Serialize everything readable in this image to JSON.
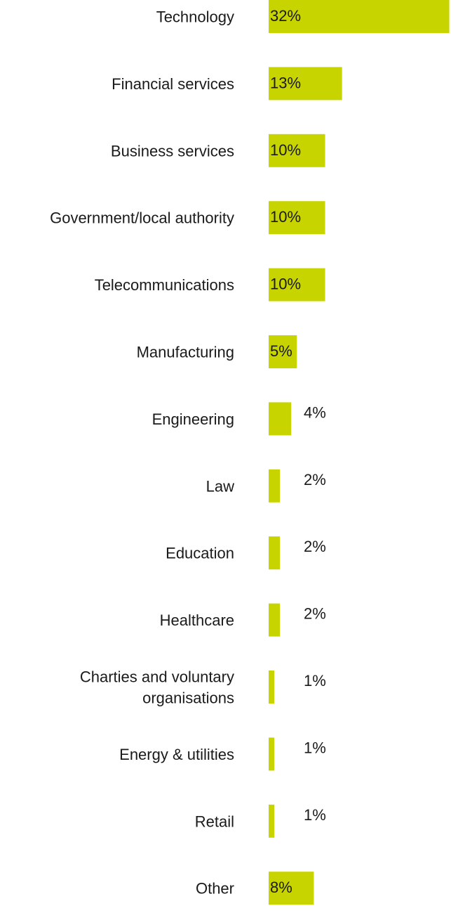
{
  "chart_data": {
    "type": "bar",
    "orientation": "horizontal",
    "title": "",
    "xlabel": "",
    "ylabel": "",
    "grid": false,
    "bar_color": "#c8d400",
    "unit": "%",
    "categories": [
      [
        "Technology"
      ],
      [
        "Financial services"
      ],
      [
        "Business  services"
      ],
      [
        "Government/local authority"
      ],
      [
        "Telecommunications"
      ],
      [
        "Manufacturing"
      ],
      [
        "Engineering"
      ],
      [
        "Law"
      ],
      [
        "Education"
      ],
      [
        "Healthcare"
      ],
      [
        "Charties  and voluntary",
        "organisations"
      ],
      [
        "Energy &  utilities"
      ],
      [
        "Retail"
      ],
      [
        "Other"
      ]
    ],
    "values": [
      32,
      13,
      10,
      10,
      10,
      5,
      4,
      2,
      2,
      2,
      1,
      1,
      1,
      8
    ],
    "value_labels": [
      "32%",
      "13%",
      "10%",
      "10%",
      "10%",
      "5%",
      "4%",
      "2%",
      "2%",
      "2%",
      "1%",
      "1%",
      "1%",
      "8%"
    ]
  }
}
